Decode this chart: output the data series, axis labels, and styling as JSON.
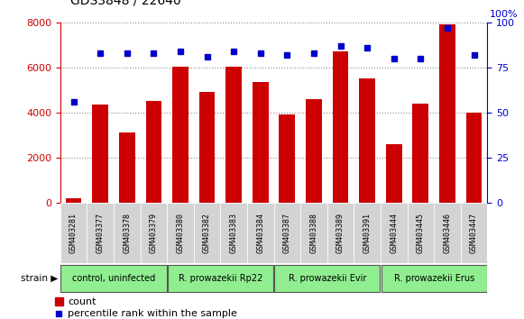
{
  "title": "GDS3848 / 22640",
  "samples": [
    "GSM403281",
    "GSM403377",
    "GSM403378",
    "GSM403379",
    "GSM403380",
    "GSM403382",
    "GSM403383",
    "GSM403384",
    "GSM403387",
    "GSM403388",
    "GSM403389",
    "GSM403391",
    "GSM403444",
    "GSM403445",
    "GSM403446",
    "GSM403447"
  ],
  "counts": [
    200,
    4350,
    3100,
    4500,
    6050,
    4900,
    6050,
    5350,
    3900,
    4600,
    6700,
    5500,
    2600,
    4400,
    7900,
    4000
  ],
  "percentiles": [
    56,
    83,
    83,
    83,
    84,
    81,
    84,
    83,
    82,
    83,
    87,
    86,
    80,
    80,
    97,
    82
  ],
  "group_labels": [
    "control, uninfected",
    "R. prowazekii Rp22",
    "R. prowazekii Evir",
    "R. prowazekii Erus"
  ],
  "group_starts": [
    0,
    4,
    8,
    12
  ],
  "group_ends": [
    3,
    7,
    11,
    15
  ],
  "group_color": "#90ee90",
  "bar_color": "#cc0000",
  "dot_color": "#0000cc",
  "left_axis_color": "#cc0000",
  "right_axis_color": "#0000cc",
  "ylim_left": [
    0,
    8000
  ],
  "ylim_right": [
    0,
    100
  ],
  "yticks_left": [
    0,
    2000,
    4000,
    6000,
    8000
  ],
  "yticks_right": [
    0,
    25,
    50,
    75,
    100
  ],
  "plot_bg": "#ffffff",
  "sample_cell_bg": "#d3d3d3",
  "bg_color": "#ffffff",
  "legend_count_label": "count",
  "legend_pct_label": "percentile rank within the sample"
}
